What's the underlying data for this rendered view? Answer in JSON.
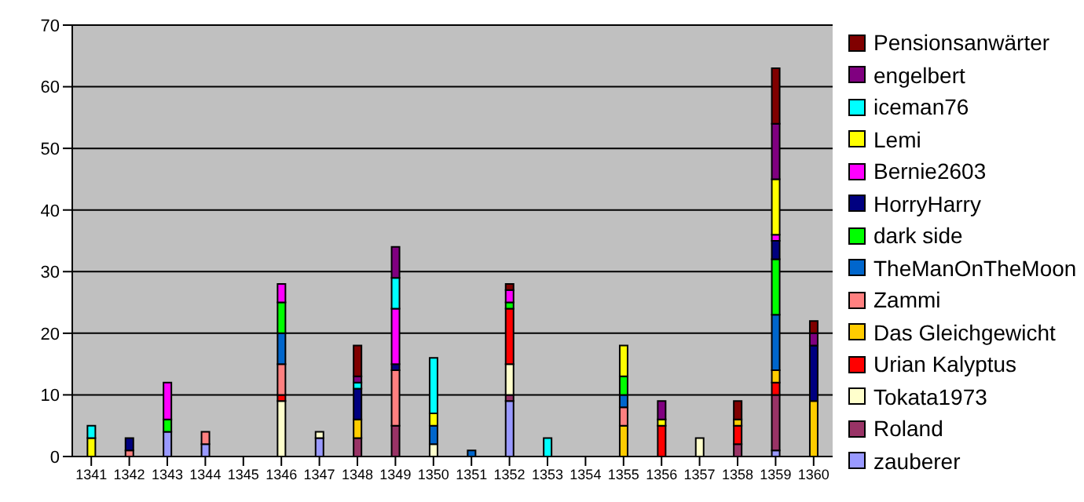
{
  "chart_data": {
    "type": "bar",
    "stacked": true,
    "categories": [
      "1341",
      "1342",
      "1343",
      "1344",
      "1345",
      "1346",
      "1347",
      "1348",
      "1349",
      "1350",
      "1351",
      "1352",
      "1353",
      "1354",
      "1355",
      "1356",
      "1357",
      "1358",
      "1359",
      "1360"
    ],
    "ylim": [
      0,
      70
    ],
    "yticks": [
      0,
      10,
      20,
      30,
      40,
      50,
      60,
      70
    ],
    "grid": "y",
    "legend": "right",
    "series": [
      {
        "name": "zauberer",
        "color": "#9999ff",
        "values": [
          null,
          null,
          4,
          2,
          null,
          null,
          3,
          null,
          null,
          null,
          null,
          9,
          null,
          null,
          null,
          null,
          null,
          null,
          1,
          null
        ]
      },
      {
        "name": "Roland",
        "color": "#993366",
        "values": [
          null,
          null,
          null,
          null,
          null,
          null,
          null,
          3,
          5,
          null,
          null,
          1,
          null,
          null,
          null,
          null,
          null,
          2,
          9,
          null
        ]
      },
      {
        "name": "Tokata1973",
        "color": "#ffffcc",
        "values": [
          null,
          null,
          null,
          null,
          null,
          9,
          1,
          null,
          null,
          2,
          null,
          5,
          null,
          null,
          null,
          null,
          3,
          null,
          null,
          null
        ]
      },
      {
        "name": "Urian Kalyptus",
        "color": "#ff0000",
        "values": [
          null,
          null,
          null,
          null,
          null,
          1,
          null,
          null,
          null,
          null,
          null,
          9,
          null,
          null,
          null,
          5,
          null,
          3,
          2,
          null
        ]
      },
      {
        "name": "Das Gleichgewicht",
        "color": "#ffcc00",
        "values": [
          null,
          null,
          null,
          null,
          null,
          null,
          null,
          3,
          null,
          null,
          null,
          null,
          null,
          null,
          5,
          null,
          null,
          1,
          2,
          9
        ]
      },
      {
        "name": "Zammi",
        "color": "#ff8080",
        "values": [
          null,
          1,
          null,
          2,
          null,
          5,
          null,
          null,
          9,
          null,
          null,
          null,
          null,
          null,
          3,
          null,
          null,
          null,
          null,
          null
        ]
      },
      {
        "name": "TheManOnTheMoon",
        "color": "#0066cc",
        "values": [
          null,
          null,
          null,
          null,
          null,
          5,
          null,
          null,
          null,
          3,
          1,
          null,
          null,
          null,
          2,
          null,
          null,
          null,
          9,
          null
        ]
      },
      {
        "name": "dark side",
        "color": "#00ff00",
        "values": [
          null,
          null,
          2,
          null,
          null,
          5,
          null,
          null,
          null,
          null,
          null,
          1,
          null,
          null,
          3,
          null,
          null,
          null,
          9,
          null
        ]
      },
      {
        "name": "HorryHarry",
        "color": "#000080",
        "values": [
          null,
          2,
          null,
          null,
          null,
          null,
          null,
          5,
          1,
          null,
          null,
          null,
          null,
          null,
          null,
          null,
          null,
          null,
          3,
          9
        ]
      },
      {
        "name": "Bernie2603",
        "color": "#ff00ff",
        "values": [
          null,
          null,
          6,
          null,
          null,
          3,
          null,
          null,
          9,
          null,
          null,
          2,
          null,
          null,
          null,
          null,
          null,
          null,
          1,
          null
        ]
      },
      {
        "name": "Lemi",
        "color": "#ffff00",
        "values": [
          3,
          null,
          null,
          null,
          null,
          null,
          null,
          null,
          null,
          2,
          null,
          null,
          null,
          null,
          5,
          1,
          null,
          null,
          9,
          null
        ]
      },
      {
        "name": "iceman76",
        "color": "#00ffff",
        "values": [
          2,
          null,
          null,
          null,
          null,
          null,
          null,
          1,
          5,
          9,
          null,
          null,
          3,
          null,
          null,
          null,
          null,
          null,
          null,
          null
        ]
      },
      {
        "name": "engelbert",
        "color": "#800080",
        "values": [
          null,
          null,
          null,
          null,
          null,
          null,
          null,
          1,
          5,
          null,
          null,
          null,
          null,
          null,
          null,
          3,
          null,
          null,
          9,
          2
        ]
      },
      {
        "name": "Pensionsanwärter",
        "color": "#800000",
        "values": [
          null,
          null,
          null,
          null,
          null,
          null,
          null,
          5,
          null,
          null,
          null,
          1,
          null,
          null,
          null,
          null,
          null,
          3,
          9,
          2
        ]
      }
    ]
  }
}
